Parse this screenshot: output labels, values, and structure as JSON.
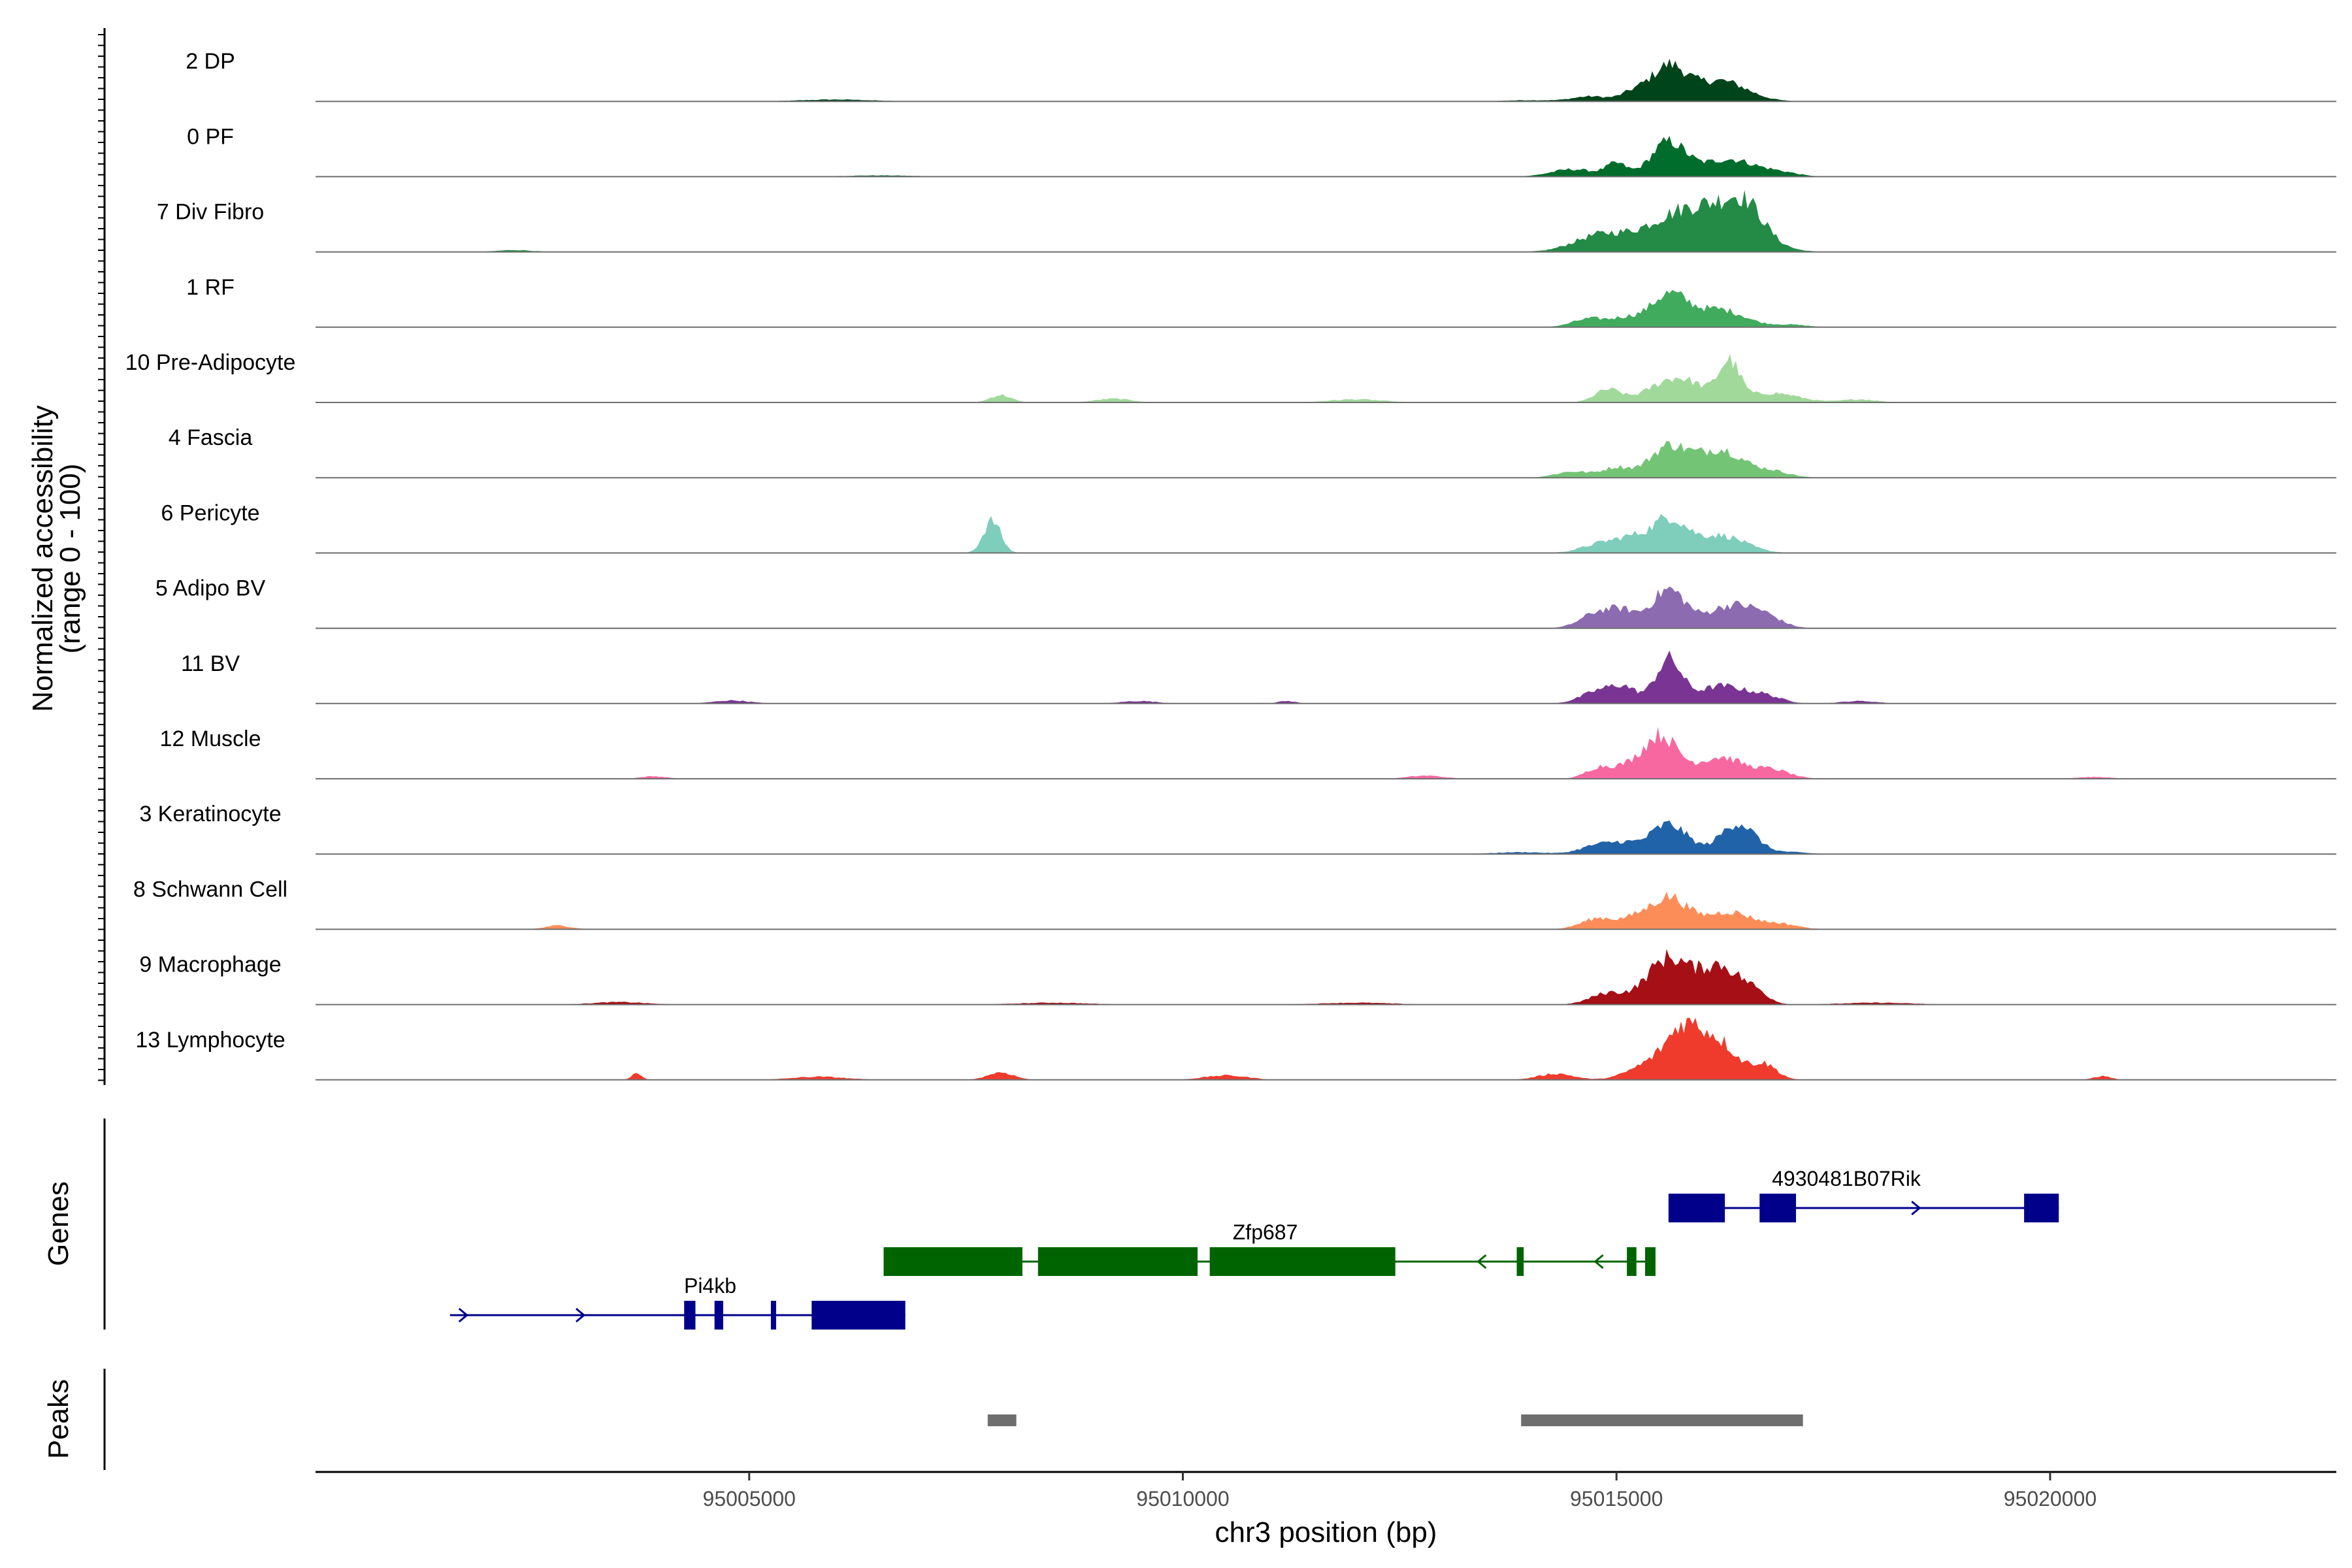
{
  "chart_data": {
    "type": "area",
    "title": "",
    "xlabel": "chr3 position (bp)",
    "ylabel": "Normalized accessibility (range 0 - 100)",
    "ylabel_lines": [
      "Normalized accessibility",
      "(range 0 - 100)"
    ],
    "ylim": [
      0,
      100
    ],
    "xlim": [
      95000000,
      95023300
    ],
    "x_ticks": [
      95005000,
      95010000,
      95015000,
      95020000
    ],
    "x_tick_labels": [
      "95005000",
      "95010000",
      "95015000",
      "95020000"
    ],
    "series": [
      {
        "name": "2 DP",
        "color": "#00441B",
        "peaks": [
          [
            95015600,
            55,
            200
          ],
          [
            95016200,
            33,
            300
          ],
          [
            95015200,
            14,
            150
          ],
          [
            95014700,
            8,
            200
          ],
          [
            95014000,
            2,
            300
          ],
          [
            95006000,
            3,
            400
          ]
        ]
      },
      {
        "name": "0 PF",
        "color": "#006D2C",
        "peaks": [
          [
            95015600,
            55,
            200
          ],
          [
            95016300,
            28,
            300
          ],
          [
            95015000,
            20,
            120
          ],
          [
            95014500,
            12,
            250
          ],
          [
            95016900,
            6,
            200
          ],
          [
            95006500,
            2,
            400
          ]
        ]
      },
      {
        "name": "7 Div Fibro",
        "color": "#238B45",
        "peaks": [
          [
            95015700,
            55,
            400
          ],
          [
            95016300,
            50,
            350
          ],
          [
            95014800,
            25,
            300
          ],
          [
            95016500,
            35,
            200
          ],
          [
            95002300,
            3,
            200
          ]
        ]
      },
      {
        "name": "1 RF",
        "color": "#41AB5D",
        "peaks": [
          [
            95015600,
            52,
            220
          ],
          [
            95016200,
            28,
            280
          ],
          [
            95014700,
            14,
            200
          ],
          [
            95015100,
            12,
            150
          ],
          [
            95017000,
            4,
            200
          ]
        ]
      },
      {
        "name": "10 Pre-Adipocyte",
        "color": "#A1D99B",
        "peaks": [
          [
            95015700,
            40,
            300
          ],
          [
            95016300,
            60,
            120
          ],
          [
            95014900,
            20,
            150
          ],
          [
            95016800,
            15,
            300
          ],
          [
            95007900,
            12,
            120
          ],
          [
            95009200,
            6,
            200
          ],
          [
            95012000,
            5,
            300
          ],
          [
            95017800,
            5,
            200
          ]
        ]
      },
      {
        "name": "4 Fascia",
        "color": "#74C476",
        "peaks": [
          [
            95015600,
            50,
            220
          ],
          [
            95016200,
            45,
            260
          ],
          [
            95015000,
            16,
            160
          ],
          [
            95014500,
            10,
            200
          ],
          [
            95016800,
            10,
            200
          ]
        ]
      },
      {
        "name": "6 Pericyte",
        "color": "#7FCDBB",
        "peaks": [
          [
            95007800,
            52,
            100
          ],
          [
            95015600,
            55,
            200
          ],
          [
            95016200,
            28,
            280
          ],
          [
            95014900,
            18,
            250
          ],
          [
            95015200,
            14,
            150
          ]
        ]
      },
      {
        "name": "5 Adipo BV",
        "color": "#8C6BB1",
        "peaks": [
          [
            95015600,
            62,
            200
          ],
          [
            95016300,
            35,
            250
          ],
          [
            95014800,
            26,
            200
          ],
          [
            95015100,
            20,
            150
          ],
          [
            95016700,
            18,
            200
          ]
        ]
      },
      {
        "name": "11 BV",
        "color": "#7A3494",
        "peaks": [
          [
            95015600,
            70,
            150
          ],
          [
            95016200,
            28,
            260
          ],
          [
            95014800,
            20,
            200
          ],
          [
            95015100,
            22,
            150
          ],
          [
            95016700,
            12,
            200
          ],
          [
            95004800,
            5,
            200
          ],
          [
            95009500,
            4,
            200
          ],
          [
            95011200,
            4,
            100
          ],
          [
            95017800,
            4,
            200
          ]
        ]
      },
      {
        "name": "12 Muscle",
        "color": "#F768A1",
        "peaks": [
          [
            95015500,
            70,
            200
          ],
          [
            95016200,
            35,
            260
          ],
          [
            95014800,
            18,
            150
          ],
          [
            95015100,
            14,
            150
          ],
          [
            95016800,
            14,
            200
          ],
          [
            95003900,
            4,
            150
          ],
          [
            95012800,
            5,
            200
          ],
          [
            95020500,
            3,
            200
          ]
        ]
      },
      {
        "name": "3 Keratinocyte",
        "color": "#2163A8",
        "peaks": [
          [
            95015600,
            48,
            220
          ],
          [
            95016400,
            50,
            200
          ],
          [
            95014800,
            15,
            200
          ],
          [
            95015100,
            12,
            150
          ],
          [
            95013900,
            3,
            300
          ],
          [
            95017000,
            3,
            200
          ]
        ]
      },
      {
        "name": "8 Schwann Cell",
        "color": "#FC8D59",
        "peaks": [
          [
            95015600,
            52,
            220
          ],
          [
            95016300,
            28,
            260
          ],
          [
            95014800,
            18,
            200
          ],
          [
            95015200,
            12,
            150
          ],
          [
            95002800,
            6,
            150
          ],
          [
            95016900,
            8,
            200
          ]
        ]
      },
      {
        "name": "9 Macrophage",
        "color": "#A50F15",
        "peaks": [
          [
            95015600,
            75,
            250
          ],
          [
            95016200,
            60,
            220
          ],
          [
            95014900,
            18,
            200
          ],
          [
            95016600,
            18,
            150
          ],
          [
            95003500,
            4,
            300
          ],
          [
            95008500,
            3,
            400
          ],
          [
            95012000,
            3,
            400
          ],
          [
            95018000,
            3,
            400
          ]
        ]
      },
      {
        "name": "13 Lymphocyte",
        "color": "#EF3B2C",
        "peaks": [
          [
            95015800,
            80,
            200
          ],
          [
            95016200,
            55,
            200
          ],
          [
            95015400,
            25,
            250
          ],
          [
            95016700,
            25,
            150
          ],
          [
            95014300,
            10,
            200
          ],
          [
            95003700,
            10,
            60
          ],
          [
            95007900,
            12,
            150
          ],
          [
            95010500,
            7,
            250
          ],
          [
            95020600,
            6,
            100
          ],
          [
            95005800,
            5,
            300
          ]
        ]
      }
    ],
    "genes": [
      {
        "name": "4930481B07Rik",
        "strand": "+",
        "color": "#00008B",
        "start": 95015600,
        "end": 95020100,
        "exons": [
          [
            95015600,
            95016250
          ],
          [
            95016650,
            95017070
          ],
          [
            95019700,
            95020100
          ]
        ]
      },
      {
        "name": "Zfp687",
        "strand": "-",
        "color": "#006400",
        "start": 95006550,
        "end": 95015450,
        "exons": [
          [
            95006550,
            95008150
          ],
          [
            95008330,
            95010170
          ],
          [
            95010310,
            95012450
          ],
          [
            95013850,
            95013930
          ],
          [
            95015120,
            95015230
          ],
          [
            95015330,
            95015450
          ]
        ]
      },
      {
        "name": "Pi4kb",
        "strand": "+",
        "color": "#00008B",
        "start": 95001550,
        "end": 95006800,
        "exons": [
          [
            95004250,
            95004380
          ],
          [
            95004600,
            95004700
          ],
          [
            95005250,
            95005310
          ],
          [
            95005720,
            95006800
          ]
        ]
      }
    ],
    "peaks": [
      [
        95007750,
        95008080
      ],
      [
        95013900,
        95017150
      ]
    ],
    "panel_titles": {
      "genes": "Genes",
      "peaks": "Peaks"
    }
  }
}
